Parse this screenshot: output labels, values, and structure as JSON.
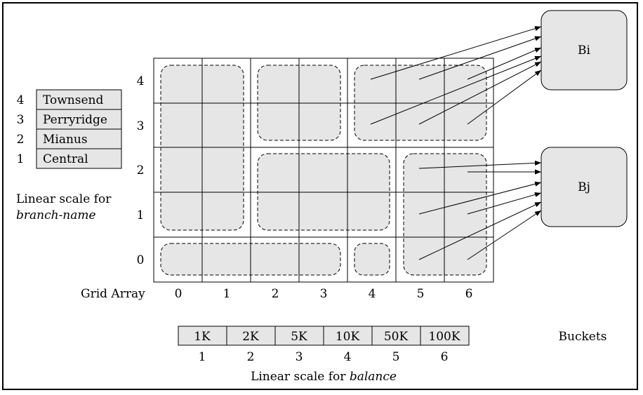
{
  "branch_scale": {
    "rows": [
      {
        "index": "4",
        "name": "Townsend"
      },
      {
        "index": "3",
        "name": "Perryridge"
      },
      {
        "index": "2",
        "name": "Mianus"
      },
      {
        "index": "1",
        "name": "Central"
      }
    ],
    "caption_line1": "Linear scale for",
    "caption_line2": "branch-name"
  },
  "grid": {
    "label": "Grid Array",
    "row_labels": [
      "4",
      "3",
      "2",
      "1",
      "0"
    ],
    "col_labels": [
      "0",
      "1",
      "2",
      "3",
      "4",
      "5",
      "6"
    ]
  },
  "buckets": {
    "label": "Buckets",
    "bi": "Bi",
    "bj": "Bj"
  },
  "balance_scale": {
    "values": [
      "1K",
      "2K",
      "5K",
      "10K",
      "50K",
      "100K"
    ],
    "indices": [
      "1",
      "2",
      "3",
      "4",
      "5",
      "6"
    ],
    "caption_prefix": "Linear scale for ",
    "caption_italic": "balance"
  },
  "colors": {
    "fill": "#e6e6e6",
    "line": "#000000"
  }
}
